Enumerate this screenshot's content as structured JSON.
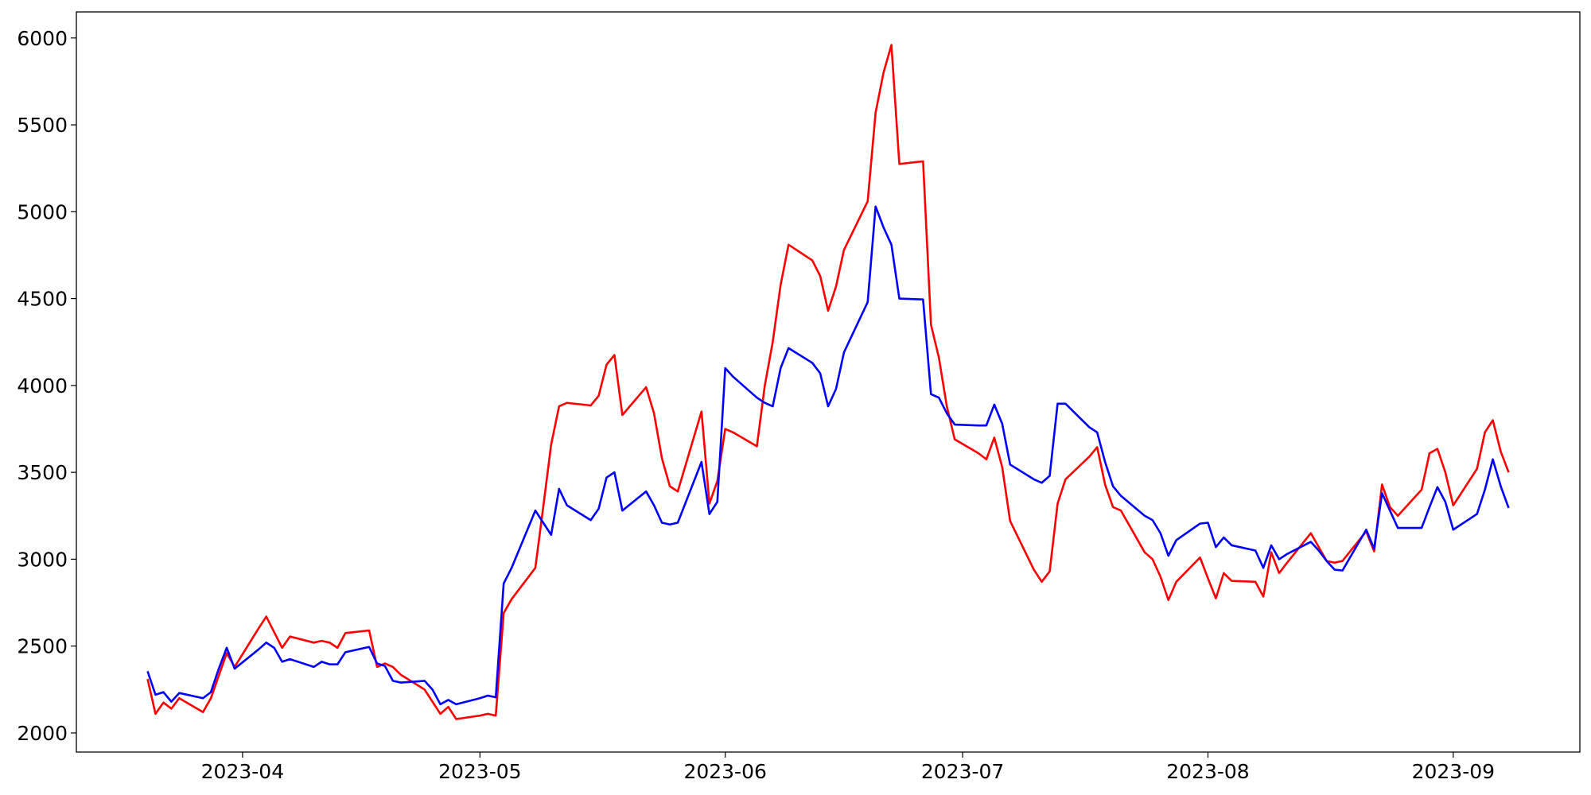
{
  "chart_data": {
    "type": "line",
    "x": [
      "2023-03-20",
      "2023-03-21",
      "2023-03-22",
      "2023-03-23",
      "2023-03-24",
      "2023-03-27",
      "2023-03-28",
      "2023-03-29",
      "2023-03-30",
      "2023-03-31",
      "2023-04-03",
      "2023-04-04",
      "2023-04-05",
      "2023-04-06",
      "2023-04-07",
      "2023-04-10",
      "2023-04-11",
      "2023-04-12",
      "2023-04-13",
      "2023-04-14",
      "2023-04-17",
      "2023-04-18",
      "2023-04-19",
      "2023-04-20",
      "2023-04-21",
      "2023-04-24",
      "2023-04-25",
      "2023-04-26",
      "2023-04-27",
      "2023-04-28",
      "2023-05-01",
      "2023-05-02",
      "2023-05-03",
      "2023-05-04",
      "2023-05-05",
      "2023-05-08",
      "2023-05-09",
      "2023-05-10",
      "2023-05-11",
      "2023-05-12",
      "2023-05-15",
      "2023-05-16",
      "2023-05-17",
      "2023-05-18",
      "2023-05-19",
      "2023-05-22",
      "2023-05-23",
      "2023-05-24",
      "2023-05-25",
      "2023-05-26",
      "2023-05-29",
      "2023-05-30",
      "2023-05-31",
      "2023-06-01",
      "2023-06-02",
      "2023-06-05",
      "2023-06-06",
      "2023-06-07",
      "2023-06-08",
      "2023-06-09",
      "2023-06-12",
      "2023-06-13",
      "2023-06-14",
      "2023-06-15",
      "2023-06-16",
      "2023-06-19",
      "2023-06-20",
      "2023-06-21",
      "2023-06-22",
      "2023-06-23",
      "2023-06-26",
      "2023-06-27",
      "2023-06-28",
      "2023-06-29",
      "2023-06-30",
      "2023-07-03",
      "2023-07-04",
      "2023-07-05",
      "2023-07-06",
      "2023-07-07",
      "2023-07-10",
      "2023-07-11",
      "2023-07-12",
      "2023-07-13",
      "2023-07-14",
      "2023-07-17",
      "2023-07-18",
      "2023-07-19",
      "2023-07-20",
      "2023-07-21",
      "2023-07-24",
      "2023-07-25",
      "2023-07-26",
      "2023-07-27",
      "2023-07-28",
      "2023-07-31",
      "2023-08-01",
      "2023-08-02",
      "2023-08-03",
      "2023-08-04",
      "2023-08-07",
      "2023-08-08",
      "2023-08-09",
      "2023-08-10",
      "2023-08-11",
      "2023-08-14",
      "2023-08-15",
      "2023-08-16",
      "2023-08-17",
      "2023-08-18",
      "2023-08-21",
      "2023-08-22",
      "2023-08-23",
      "2023-08-24",
      "2023-08-25",
      "2023-08-28",
      "2023-08-29",
      "2023-08-30",
      "2023-08-31",
      "2023-09-01",
      "2023-09-04",
      "2023-09-05",
      "2023-09-06",
      "2023-09-07",
      "2023-09-08"
    ],
    "series": [
      {
        "color": "#ff0000",
        "values": [
          2310,
          2110,
          2175,
          2140,
          2200,
          2120,
          2200,
          2330,
          2460,
          2380,
          2600,
          2670,
          2580,
          2490,
          2555,
          2520,
          2530,
          2520,
          2490,
          2575,
          2590,
          2380,
          2400,
          2380,
          2335,
          2250,
          2180,
          2110,
          2150,
          2080,
          2100,
          2110,
          2100,
          2690,
          2770,
          2950,
          3300,
          3660,
          3880,
          3900,
          3885,
          3940,
          4120,
          4175,
          3830,
          3990,
          3840,
          3580,
          3420,
          3390,
          3850,
          3320,
          3450,
          3750,
          3730,
          3650,
          4000,
          4250,
          4580,
          4810,
          4720,
          4630,
          4430,
          4570,
          4780,
          5060,
          5570,
          5800,
          5960,
          5275,
          5290,
          4350,
          4160,
          3880,
          3690,
          3610,
          3575,
          3700,
          3530,
          3220,
          2940,
          2870,
          2930,
          3320,
          3460,
          3590,
          3645,
          3430,
          3300,
          3280,
          3040,
          3000,
          2900,
          2765,
          2870,
          3010,
          2890,
          2775,
          2920,
          2875,
          2870,
          2785,
          3040,
          2920,
          2980,
          3150,
          3070,
          2990,
          2980,
          2990,
          3160,
          3045,
          3430,
          3300,
          3250,
          3400,
          3610,
          3635,
          3500,
          3310,
          3520,
          3730,
          3800,
          3620,
          3500
        ]
      },
      {
        "color": "#0000ff",
        "values": [
          2355,
          2220,
          2235,
          2180,
          2230,
          2200,
          2235,
          2370,
          2490,
          2370,
          2480,
          2520,
          2490,
          2410,
          2425,
          2380,
          2410,
          2395,
          2395,
          2465,
          2495,
          2400,
          2385,
          2300,
          2290,
          2300,
          2250,
          2165,
          2190,
          2165,
          2200,
          2215,
          2205,
          2860,
          2950,
          3280,
          3210,
          3140,
          3405,
          3310,
          3225,
          3290,
          3470,
          3500,
          3280,
          3390,
          3310,
          3210,
          3200,
          3210,
          3560,
          3260,
          3330,
          4100,
          4050,
          3930,
          3900,
          3880,
          4100,
          4215,
          4130,
          4070,
          3880,
          3980,
          4190,
          4480,
          5030,
          4910,
          4810,
          4500,
          4495,
          3950,
          3930,
          3840,
          3775,
          3770,
          3770,
          3890,
          3780,
          3545,
          3460,
          3440,
          3480,
          3895,
          3895,
          3760,
          3730,
          3560,
          3420,
          3365,
          3250,
          3225,
          3150,
          3020,
          3110,
          3205,
          3210,
          3070,
          3125,
          3080,
          3050,
          2950,
          3080,
          3000,
          3030,
          3100,
          3050,
          2990,
          2940,
          2935,
          3170,
          3060,
          3380,
          3280,
          3180,
          3180,
          3300,
          3415,
          3330,
          3170,
          3260,
          3400,
          3575,
          3420,
          3295
        ]
      }
    ],
    "xlim": [
      "2023-03-11",
      "2023-09-17"
    ],
    "xticks": [
      {
        "value": "2023-04-01",
        "label": "2023-04"
      },
      {
        "value": "2023-05-01",
        "label": "2023-05"
      },
      {
        "value": "2023-06-01",
        "label": "2023-06"
      },
      {
        "value": "2023-07-01",
        "label": "2023-07"
      },
      {
        "value": "2023-08-01",
        "label": "2023-08"
      },
      {
        "value": "2023-09-01",
        "label": "2023-09"
      }
    ],
    "ylim": [
      1890,
      6150
    ],
    "yticks": [
      2000,
      2500,
      3000,
      3500,
      4000,
      4500,
      5000,
      5500,
      6000
    ]
  }
}
